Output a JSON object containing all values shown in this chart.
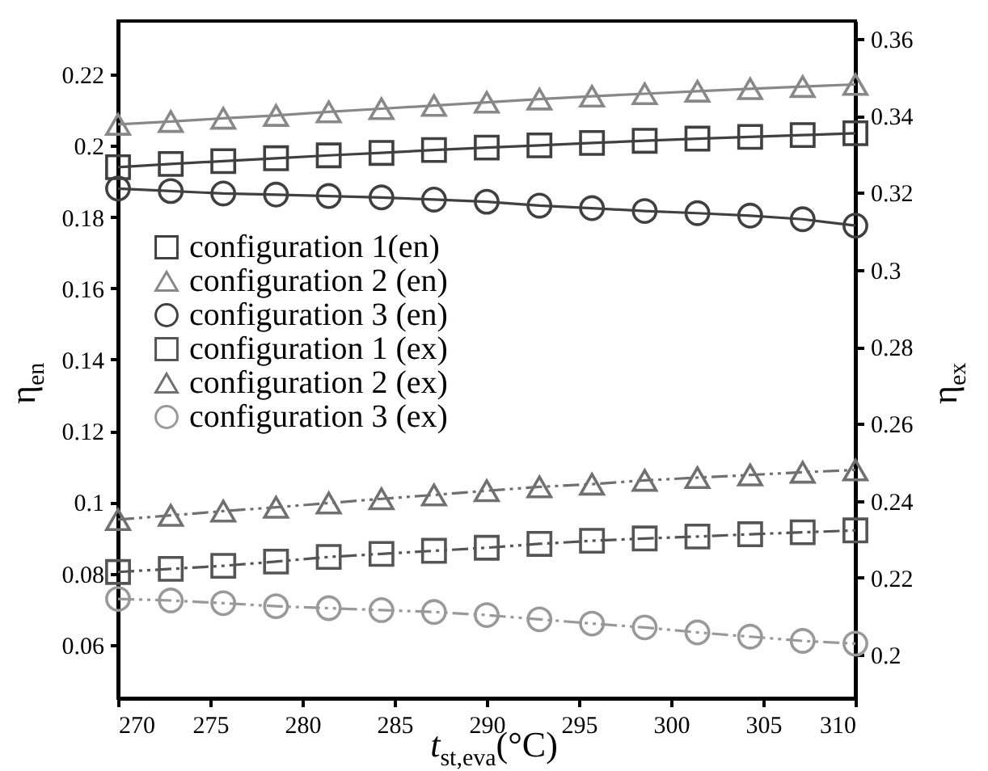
{
  "chart_data": {
    "type": "line",
    "x": [
      270,
      272.86,
      275.71,
      278.57,
      281.43,
      284.29,
      287.14,
      290,
      292.86,
      295.71,
      298.57,
      301.43,
      304.29,
      307.14,
      310
    ],
    "xlabel": "t$_{st,eva}$(°C)",
    "ylabel": "η$_{en}$",
    "y2label": "η$_{ex}$",
    "xlim": [
      270,
      310
    ],
    "xticks": [
      270,
      275,
      280,
      285,
      290,
      295,
      300,
      305,
      310
    ],
    "ylim": [
      0.045,
      0.235
    ],
    "yticks": [
      0.06,
      0.08,
      0.1,
      0.12,
      0.14,
      0.16,
      0.18,
      0.2,
      0.22
    ],
    "y2lim": [
      0.1887,
      0.3646
    ],
    "y2ticks": [
      0.2,
      0.22,
      0.24,
      0.26,
      0.28,
      0.3,
      0.32,
      0.34,
      0.36
    ],
    "grid": false,
    "legend": "left",
    "series": [
      {
        "name": "configuration 1(en)",
        "color": "#404040",
        "marker": "square",
        "line_style": "solid",
        "values": [
          0.194,
          0.1949,
          0.1957,
          0.1965,
          0.1973,
          0.198,
          0.1988,
          0.1995,
          0.2001,
          0.2008,
          0.2014,
          0.202,
          0.2025,
          0.203,
          0.2035
        ]
      },
      {
        "name": "configuration 2 (en)",
        "color": "#888888",
        "marker": "triangle",
        "line_style": "solid",
        "values": [
          0.206,
          0.2068,
          0.2077,
          0.2085,
          0.2095,
          0.2104,
          0.2113,
          0.2122,
          0.2131,
          0.2139,
          0.2146,
          0.2153,
          0.216,
          0.2166,
          0.2172
        ]
      },
      {
        "name": "configuration 3 (en)",
        "color": "#404040",
        "marker": "circle",
        "line_style": "solid",
        "values": [
          0.188,
          0.1873,
          0.1866,
          0.1863,
          0.1859,
          0.1855,
          0.1849,
          0.1843,
          0.1832,
          0.1825,
          0.1817,
          0.1811,
          0.1804,
          0.1794,
          0.1776
        ]
      },
      {
        "name": "configuration 1 (ex)",
        "color": "#555555",
        "marker": "square",
        "line_style": "dashed",
        "axis": "y2",
        "values": [
          0.2215,
          0.2223,
          0.2231,
          0.2242,
          0.2254,
          0.2262,
          0.227,
          0.2278,
          0.2288,
          0.2296,
          0.2302,
          0.2307,
          0.2313,
          0.2318,
          0.2323
        ]
      },
      {
        "name": "configuration 2 (ex)",
        "color": "#707070",
        "marker": "triangle",
        "line_style": "dashed",
        "axis": "y2",
        "values": [
          0.2351,
          0.2362,
          0.2373,
          0.2383,
          0.2394,
          0.2405,
          0.2415,
          0.2426,
          0.2436,
          0.2443,
          0.2453,
          0.246,
          0.2467,
          0.2474,
          0.248
        ]
      },
      {
        "name": "configuration 3 (ex)",
        "color": "#999999",
        "marker": "circle",
        "line_style": "dashed",
        "axis": "y2",
        "values": [
          0.2145,
          0.2141,
          0.2134,
          0.2126,
          0.2121,
          0.2116,
          0.2111,
          0.2103,
          0.2092,
          0.2081,
          0.2071,
          0.2058,
          0.2047,
          0.2036,
          0.2029
        ]
      }
    ]
  }
}
